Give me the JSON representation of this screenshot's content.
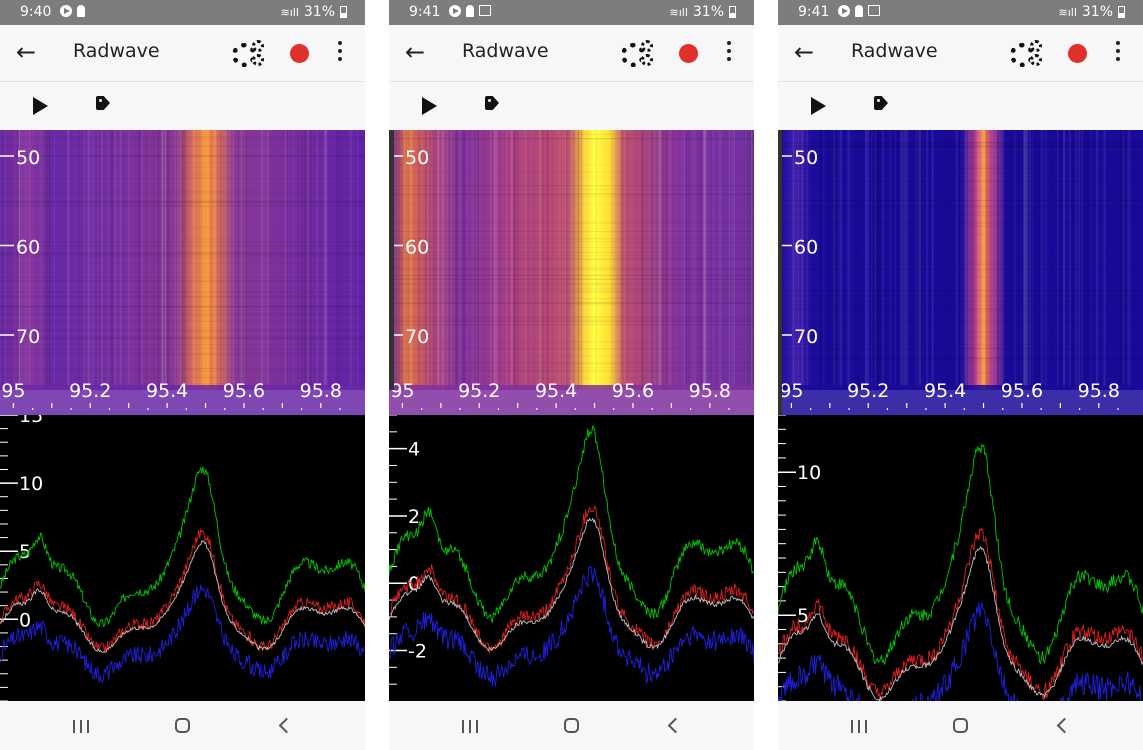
{
  "screens": [
    {
      "status": {
        "time": "9:40",
        "battery": "31%",
        "icons": [
          "play-circle-icon",
          "lock-icon"
        ]
      },
      "app": {
        "title": "Radwave"
      },
      "waterfall": {
        "palette": "plasma",
        "rows": [
          "50",
          "60",
          "70"
        ],
        "row_values": [
          50,
          60,
          70
        ],
        "freqs": [
          "95",
          "95.2",
          "95.4",
          "95.6",
          "95.8"
        ],
        "freq_values": [
          95.0,
          95.2,
          95.4,
          95.6,
          95.8
        ],
        "peak_freq": 95.5,
        "intensity": 0.65
      },
      "spectrum": {
        "ylabels": [
          "15",
          "10",
          "5",
          "0"
        ],
        "yvalues": [
          15,
          10,
          5,
          0
        ],
        "ymin": -6,
        "ymax": 15,
        "peak": 12,
        "base": 3.5,
        "floor": -2.8
      }
    },
    {
      "status": {
        "time": "9:41",
        "battery": "31%",
        "icons": [
          "play-circle-icon",
          "lock-icon",
          "image-icon"
        ]
      },
      "app": {
        "title": "Radwave"
      },
      "waterfall": {
        "palette": "plasma",
        "rows": [
          "50",
          "60",
          "70"
        ],
        "row_values": [
          50,
          60,
          70
        ],
        "freqs": [
          "95",
          "95.2",
          "95.4",
          "95.6",
          "95.8"
        ],
        "freq_values": [
          95.0,
          95.2,
          95.4,
          95.6,
          95.8
        ],
        "peak_freq": 95.5,
        "intensity": 1.0
      },
      "spectrum": {
        "ylabels": [
          "4",
          "2",
          "0",
          "-2"
        ],
        "yvalues": [
          4,
          2,
          0,
          -2
        ],
        "ymin": -3.5,
        "ymax": 5,
        "peak": 5,
        "base": 1.0,
        "floor": -2.2
      }
    },
    {
      "status": {
        "time": "9:41",
        "battery": "31%",
        "icons": [
          "play-circle-icon",
          "lock-icon",
          "image-icon"
        ]
      },
      "app": {
        "title": "Radwave"
      },
      "waterfall": {
        "palette": "blue",
        "rows": [
          "50",
          "60",
          "70"
        ],
        "row_values": [
          50,
          60,
          70
        ],
        "freqs": [
          "95",
          "95.2",
          "95.4",
          "95.6",
          "95.8"
        ],
        "freq_values": [
          95.0,
          95.2,
          95.4,
          95.6,
          95.8
        ],
        "peak_freq": 95.5,
        "intensity": 0.55
      },
      "spectrum": {
        "ylabels": [
          "10",
          "5"
        ],
        "yvalues": [
          10,
          5
        ],
        "ymin": 2,
        "ymax": 12,
        "peak": 11.5,
        "base": 2.2,
        "floor": 1.8
      }
    }
  ],
  "colors": {
    "status_bar": "#7d7d7d",
    "app_bar": "#f7f7f7",
    "record": "#e0302b",
    "trace_max": "#00c800",
    "trace_avg": "#e02020",
    "trace_min": "#2020e0",
    "trace_mid": "#c0c0c0"
  }
}
